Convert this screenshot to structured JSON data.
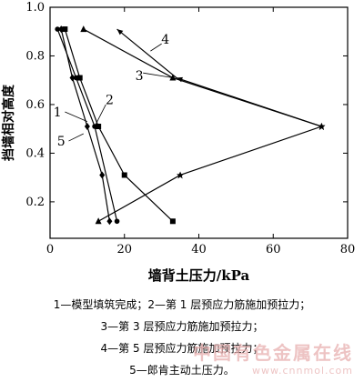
{
  "chart_data": {
    "type": "line",
    "xlabel": "墙背土压力/kPa",
    "ylabel": "挡墙相对高度",
    "xlim": [
      0,
      80
    ],
    "ylim": [
      0.05,
      1.0
    ],
    "xticks": [
      "0",
      "20",
      "40",
      "60",
      "80"
    ],
    "yticks": [
      "0.2",
      "0.4",
      "0.6",
      "0.8",
      "1.0"
    ],
    "grid": false,
    "series": [
      {
        "name": "1",
        "marker": "circle",
        "x": [
          2,
          7,
          12,
          18
        ],
        "y": [
          0.91,
          0.71,
          0.51,
          0.12
        ]
      },
      {
        "name": "2",
        "marker": "square",
        "x": [
          4,
          8,
          13,
          20,
          33
        ],
        "y": [
          0.91,
          0.71,
          0.51,
          0.31,
          0.12
        ]
      },
      {
        "name": "3",
        "marker": "triangle",
        "x": [
          9,
          33,
          73,
          35,
          13
        ],
        "y": [
          0.91,
          0.71,
          0.51,
          0.31,
          0.12
        ]
      },
      {
        "name": "4",
        "marker": "arrow",
        "x": [
          18,
          34,
          73
        ],
        "y": [
          0.91,
          0.71,
          0.51
        ]
      },
      {
        "name": "5",
        "marker": "diamond",
        "x": [
          3,
          6,
          10,
          14,
          16
        ],
        "y": [
          0.91,
          0.71,
          0.51,
          0.31,
          0.12
        ]
      }
    ],
    "annotations": [
      {
        "text": "1",
        "x": 2,
        "y": 0.57
      },
      {
        "text": "2",
        "x": 16,
        "y": 0.62
      },
      {
        "text": "3",
        "x": 24,
        "y": 0.72
      },
      {
        "text": "4",
        "x": 31,
        "y": 0.87
      },
      {
        "text": "5",
        "x": 3,
        "y": 0.45
      }
    ]
  },
  "captions": [
    "1—模型填筑完成；2—第 1 层预应力筋施加预拉力；",
    "3—第 3 层预应力筋施加预拉力；",
    "4—第 5 层预应力筋施加预拉力；",
    "5—郎肯主动土压力。"
  ],
  "watermark": {
    "title": "中国有色金属在线",
    "url": "www.cnnmol.com"
  }
}
